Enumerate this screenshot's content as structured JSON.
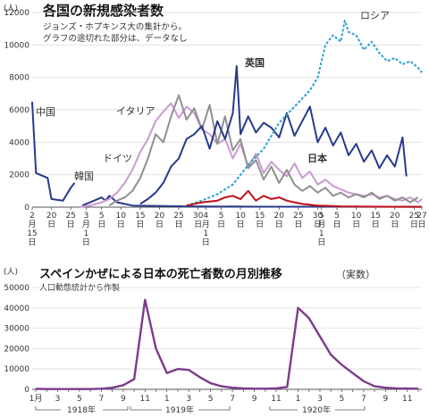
{
  "chart_data": [
    {
      "type": "line",
      "title": "各国の新規感染者数",
      "note_1": "ジョンズ・ホプキンス大の集計から。",
      "note_2": "グラフの途切れた部分は、データなし",
      "y_unit": "(人)",
      "ylim": [
        0,
        12000
      ],
      "y_ticks": [
        "0",
        "2000",
        "4000",
        "6000",
        "8000",
        "10000",
        "12000"
      ],
      "x_tick_labels": [
        "2月15日",
        "20日",
        "25日",
        "3月1日",
        "5日",
        "10日",
        "15日",
        "20日",
        "25日",
        "30日",
        "4月1日",
        "5日",
        "10日",
        "15日",
        "20日",
        "25日",
        "30日",
        "5月1日",
        "5日",
        "10日",
        "15日",
        "20日",
        "25日",
        "27日"
      ],
      "x_day_positions": [
        0,
        5,
        10,
        14,
        18,
        23,
        28,
        33,
        38,
        43,
        45,
        49,
        54,
        59,
        64,
        69,
        74,
        75,
        79,
        84,
        89,
        94,
        99,
        101
      ],
      "grid": "horizontal",
      "series": [
        {
          "name": "中国",
          "color": "#283a8c",
          "points": [
            [
              0,
              6500
            ],
            [
              1,
              2100
            ],
            [
              4,
              1800
            ],
            [
              5,
              500
            ],
            [
              8,
              400
            ],
            [
              10,
              1200
            ],
            [
              11,
              1500
            ]
          ]
        },
        {
          "name": "韓国",
          "color": "#283a8c",
          "points": [
            [
              13,
              100
            ],
            [
              15,
              300
            ],
            [
              17,
              500
            ],
            [
              18,
              600
            ],
            [
              19,
              400
            ],
            [
              20,
              700
            ],
            [
              21,
              500
            ],
            [
              22,
              300
            ],
            [
              24,
              200
            ],
            [
              26,
              100
            ],
            [
              30,
              80
            ],
            [
              40,
              50
            ],
            [
              60,
              30
            ],
            [
              101,
              20
            ]
          ]
        },
        {
          "name": "イタリア",
          "color": "#c99ad2",
          "points": [
            [
              12,
              0
            ],
            [
              15,
              100
            ],
            [
              18,
              300
            ],
            [
              20,
              500
            ],
            [
              22,
              900
            ],
            [
              24,
              1500
            ],
            [
              26,
              2300
            ],
            [
              28,
              3400
            ],
            [
              30,
              4200
            ],
            [
              32,
              5300
            ],
            [
              34,
              5900
            ],
            [
              36,
              6400
            ],
            [
              38,
              5500
            ],
            [
              40,
              6200
            ],
            [
              42,
              5800
            ],
            [
              44,
              4800
            ],
            [
              46,
              4500
            ],
            [
              48,
              3900
            ],
            [
              50,
              4200
            ],
            [
              52,
              3000
            ],
            [
              54,
              3900
            ],
            [
              56,
              2500
            ],
            [
              58,
              3300
            ],
            [
              60,
              2100
            ],
            [
              62,
              2800
            ],
            [
              64,
              2300
            ],
            [
              66,
              1900
            ],
            [
              68,
              2700
            ],
            [
              70,
              1800
            ],
            [
              72,
              2200
            ],
            [
              74,
              1400
            ],
            [
              76,
              1700
            ],
            [
              78,
              1300
            ],
            [
              80,
              1100
            ],
            [
              82,
              900
            ],
            [
              84,
              800
            ],
            [
              86,
              700
            ],
            [
              88,
              800
            ],
            [
              90,
              600
            ],
            [
              92,
              700
            ],
            [
              94,
              500
            ],
            [
              96,
              400
            ],
            [
              98,
              600
            ],
            [
              100,
              300
            ],
            [
              101,
              500
            ]
          ]
        },
        {
          "name": "ドイツ",
          "color": "#909090",
          "points": [
            [
              20,
              100
            ],
            [
              22,
              400
            ],
            [
              24,
              600
            ],
            [
              26,
              1000
            ],
            [
              28,
              1800
            ],
            [
              30,
              3000
            ],
            [
              32,
              4500
            ],
            [
              34,
              4000
            ],
            [
              36,
              5600
            ],
            [
              38,
              6900
            ],
            [
              40,
              5400
            ],
            [
              42,
              6100
            ],
            [
              44,
              4800
            ],
            [
              46,
              6300
            ],
            [
              48,
              3900
            ],
            [
              50,
              5600
            ],
            [
              52,
              3500
            ],
            [
              54,
              4200
            ],
            [
              56,
              2400
            ],
            [
              58,
              2900
            ],
            [
              60,
              1700
            ],
            [
              62,
              2500
            ],
            [
              64,
              1500
            ],
            [
              66,
              2300
            ],
            [
              68,
              1400
            ],
            [
              70,
              1000
            ],
            [
              72,
              1300
            ],
            [
              74,
              900
            ],
            [
              76,
              1200
            ],
            [
              78,
              700
            ],
            [
              80,
              900
            ],
            [
              82,
              600
            ],
            [
              84,
              800
            ],
            [
              86,
              600
            ],
            [
              88,
              900
            ],
            [
              90,
              500
            ],
            [
              92,
              700
            ],
            [
              94,
              400
            ],
            [
              96,
              600
            ],
            [
              98,
              300
            ],
            [
              100,
              600
            ]
          ]
        },
        {
          "name": "英国",
          "color": "#283a8c",
          "points": [
            [
              28,
              200
            ],
            [
              30,
              500
            ],
            [
              32,
              900
            ],
            [
              34,
              1500
            ],
            [
              36,
              2500
            ],
            [
              38,
              3000
            ],
            [
              40,
              4200
            ],
            [
              42,
              4500
            ],
            [
              44,
              5000
            ],
            [
              46,
              3600
            ],
            [
              48,
              5300
            ],
            [
              50,
              4200
            ],
            [
              52,
              5800
            ],
            [
              53,
              8700
            ],
            [
              54,
              4500
            ],
            [
              56,
              5600
            ],
            [
              58,
              4600
            ],
            [
              60,
              5200
            ],
            [
              62,
              4900
            ],
            [
              64,
              4300
            ],
            [
              66,
              5800
            ],
            [
              68,
              4400
            ],
            [
              70,
              5300
            ],
            [
              72,
              6200
            ],
            [
              74,
              4000
            ],
            [
              76,
              4900
            ],
            [
              78,
              3800
            ],
            [
              80,
              4600
            ],
            [
              82,
              3200
            ],
            [
              84,
              3900
            ],
            [
              86,
              2800
            ],
            [
              88,
              3500
            ],
            [
              90,
              2400
            ],
            [
              92,
              3200
            ],
            [
              94,
              2500
            ],
            [
              96,
              4300
            ],
            [
              97,
              1900
            ]
          ]
        },
        {
          "name": "ロシア",
          "color": "#2aa0d4",
          "points": [
            [
              40,
              100
            ],
            [
              44,
              400
            ],
            [
              48,
              800
            ],
            [
              52,
              1400
            ],
            [
              56,
              2600
            ],
            [
              60,
              3600
            ],
            [
              64,
              5200
            ],
            [
              68,
              6200
            ],
            [
              72,
              7200
            ],
            [
              74,
              8000
            ],
            [
              76,
              10000
            ],
            [
              78,
              10600
            ],
            [
              80,
              10200
            ],
            [
              81,
              11500
            ],
            [
              82,
              10800
            ],
            [
              84,
              10600
            ],
            [
              86,
              9700
            ],
            [
              88,
              10200
            ],
            [
              90,
              9500
            ],
            [
              92,
              9000
            ],
            [
              94,
              9200
            ],
            [
              96,
              8800
            ],
            [
              98,
              9000
            ],
            [
              100,
              8600
            ],
            [
              101,
              8300
            ]
          ]
        },
        {
          "name": "日本",
          "color": "#c0101a",
          "points": [
            [
              40,
              100
            ],
            [
              44,
              300
            ],
            [
              48,
              400
            ],
            [
              50,
              600
            ],
            [
              52,
              700
            ],
            [
              54,
              500
            ],
            [
              56,
              1000
            ],
            [
              58,
              400
            ],
            [
              60,
              700
            ],
            [
              62,
              500
            ],
            [
              64,
              600
            ],
            [
              66,
              400
            ],
            [
              68,
              300
            ],
            [
              70,
              200
            ],
            [
              72,
              150
            ],
            [
              74,
              100
            ],
            [
              76,
              80
            ],
            [
              80,
              50
            ],
            [
              84,
              40
            ],
            [
              90,
              30
            ],
            [
              101,
              20
            ]
          ]
        }
      ]
    },
    {
      "type": "line",
      "title": "スペインかぜによる日本の死亡者数の月別推移",
      "title_suffix": "（実数）",
      "note": "人口動態統計から作製",
      "y_unit": "(人)",
      "ylim": [
        0,
        50000
      ],
      "y_ticks": [
        "0",
        "10000",
        "20000",
        "30000",
        "40000",
        "50000"
      ],
      "x_tick_labels": [
        "1月",
        "3",
        "5",
        "7",
        "9",
        "11",
        "1",
        "3",
        "5",
        "7",
        "9",
        "11",
        "1",
        "3",
        "5",
        "7",
        "9",
        "11"
      ],
      "year_labels": [
        "1918年",
        "1919年",
        "1920年"
      ],
      "grid": "horizontal",
      "series": [
        {
          "name": "",
          "color": "#7e3a8c",
          "values": [
            200,
            150,
            150,
            150,
            150,
            150,
            300,
            800,
            2000,
            5000,
            44000,
            20000,
            8000,
            10000,
            9500,
            6000,
            3000,
            1500,
            800,
            500,
            300,
            300,
            500,
            1200,
            40000,
            35000,
            26000,
            17000,
            12000,
            8000,
            4000,
            1500,
            800,
            500,
            400,
            300
          ]
        }
      ]
    }
  ]
}
